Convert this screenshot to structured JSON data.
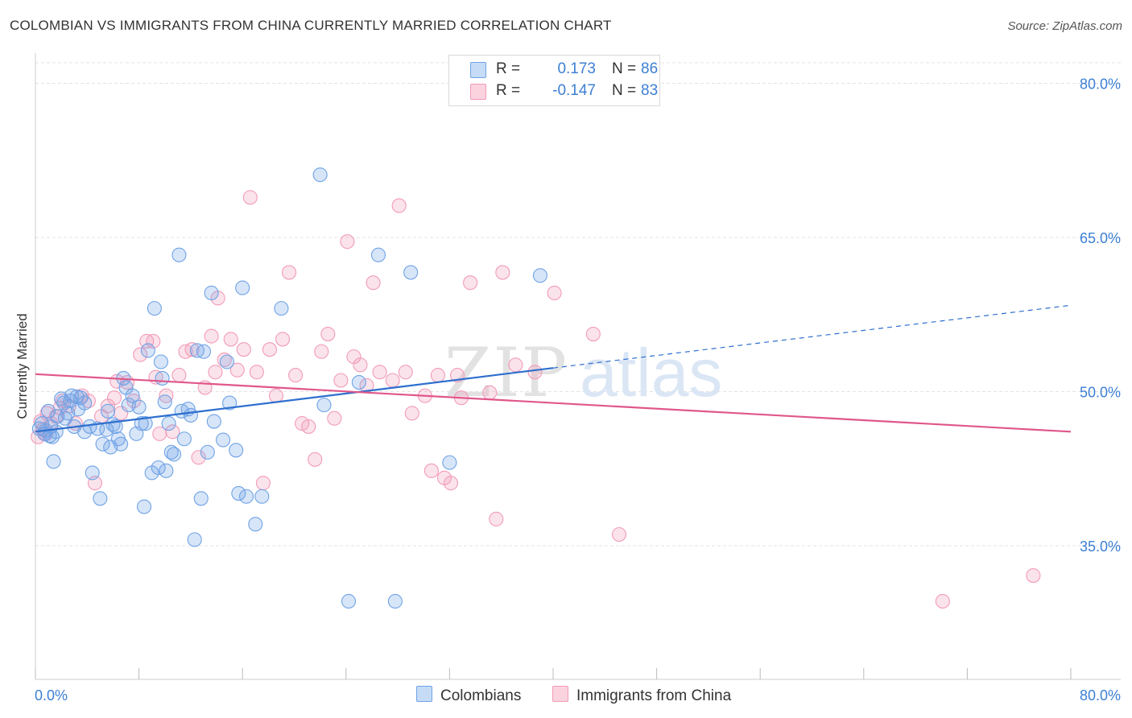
{
  "title": "COLOMBIAN VS IMMIGRANTS FROM CHINA CURRENTLY MARRIED CORRELATION CHART",
  "source": "Source: ZipAtlas.com",
  "watermark": {
    "zip": "ZIP",
    "atlas": "atlas"
  },
  "legend_top": {
    "rows": [
      {
        "r_label": "R =",
        "r_value": "0.173",
        "n_label": "N =",
        "n_value": "86"
      },
      {
        "r_label": "R =",
        "r_value": "-0.147",
        "n_label": "N =",
        "n_value": "83"
      }
    ]
  },
  "legend_bottom": {
    "items": [
      "Colombians",
      "Immigrants from China"
    ]
  },
  "chart_data": {
    "type": "scatter",
    "title": "COLOMBIAN VS IMMIGRANTS FROM CHINA CURRENTLY MARRIED CORRELATION CHART",
    "xlabel": "",
    "ylabel": "Currently Married",
    "xlim": [
      0,
      80
    ],
    "ylim": [
      22,
      82
    ],
    "x_tick_labels": [
      "0.0%",
      "80.0%"
    ],
    "y_ticks": [
      35,
      50,
      65,
      80
    ],
    "y_tick_labels": [
      "35.0%",
      "50.0%",
      "65.0%",
      "80.0%"
    ],
    "grid": true,
    "legend_position": "top-center",
    "colors": {
      "colombians": "#6fa3e6",
      "china": "#f29bb8",
      "line_blue": "#2d6fce",
      "line_pink": "#e0578a",
      "text_blue": "#3d7fd3"
    },
    "series": [
      {
        "name": "Colombians",
        "trend": {
          "x": [
            0,
            40
          ],
          "y": [
            46.1,
            52.3
          ],
          "dashed_to": [
            80,
            58.4
          ]
        },
        "points": [
          [
            0.3,
            46.4
          ],
          [
            0.5,
            46.9
          ],
          [
            0.7,
            45.9
          ],
          [
            1.0,
            48.1
          ],
          [
            1.2,
            46.6
          ],
          [
            1.3,
            45.6
          ],
          [
            1.4,
            43.2
          ],
          [
            1.6,
            46.1
          ],
          [
            1.7,
            47.6
          ],
          [
            2.0,
            49.3
          ],
          [
            2.2,
            48.9
          ],
          [
            2.5,
            47.9
          ],
          [
            2.7,
            49.1
          ],
          [
            3.0,
            46.6
          ],
          [
            3.2,
            49.5
          ],
          [
            3.5,
            49.4
          ],
          [
            3.8,
            48.9
          ],
          [
            3.8,
            46.1
          ],
          [
            4.2,
            46.6
          ],
          [
            4.4,
            42.1
          ],
          [
            4.8,
            46.4
          ],
          [
            5.0,
            39.6
          ],
          [
            5.2,
            44.9
          ],
          [
            5.5,
            46.3
          ],
          [
            5.6,
            48.1
          ],
          [
            5.8,
            44.6
          ],
          [
            6.2,
            46.6
          ],
          [
            6.4,
            45.4
          ],
          [
            6.6,
            44.9
          ],
          [
            6.8,
            51.3
          ],
          [
            7.0,
            50.4
          ],
          [
            7.2,
            48.7
          ],
          [
            7.5,
            49.6
          ],
          [
            7.8,
            45.9
          ],
          [
            8.0,
            48.5
          ],
          [
            8.2,
            46.9
          ],
          [
            8.4,
            38.8
          ],
          [
            8.7,
            54.0
          ],
          [
            9.0,
            42.1
          ],
          [
            9.2,
            58.1
          ],
          [
            9.5,
            42.6
          ],
          [
            9.7,
            52.9
          ],
          [
            9.8,
            51.3
          ],
          [
            10.1,
            42.3
          ],
          [
            10.3,
            46.9
          ],
          [
            10.5,
            44.1
          ],
          [
            10.7,
            43.9
          ],
          [
            11.1,
            63.3
          ],
          [
            11.3,
            48.1
          ],
          [
            11.5,
            45.4
          ],
          [
            11.8,
            48.3
          ],
          [
            12.3,
            35.6
          ],
          [
            12.5,
            54.0
          ],
          [
            12.8,
            39.6
          ],
          [
            13.0,
            53.9
          ],
          [
            13.3,
            44.1
          ],
          [
            13.6,
            59.6
          ],
          [
            13.8,
            47.1
          ],
          [
            14.5,
            45.3
          ],
          [
            14.8,
            52.9
          ],
          [
            15.0,
            48.9
          ],
          [
            15.5,
            44.3
          ],
          [
            15.7,
            40.1
          ],
          [
            16.0,
            60.1
          ],
          [
            16.3,
            39.8
          ],
          [
            17.0,
            37.1
          ],
          [
            17.5,
            39.8
          ],
          [
            19.0,
            58.1
          ],
          [
            22.0,
            71.1
          ],
          [
            22.3,
            48.7
          ],
          [
            24.2,
            29.6
          ],
          [
            25.0,
            50.9
          ],
          [
            26.5,
            63.3
          ],
          [
            27.8,
            29.6
          ],
          [
            29.0,
            61.6
          ],
          [
            32.0,
            43.1
          ],
          [
            39.0,
            61.3
          ],
          [
            2.8,
            49.6
          ],
          [
            6.0,
            46.8
          ],
          [
            12.0,
            47.7
          ],
          [
            8.5,
            46.9
          ],
          [
            3.3,
            48.3
          ],
          [
            1.1,
            45.7
          ],
          [
            0.8,
            46.2
          ],
          [
            2.3,
            47.4
          ],
          [
            10.0,
            49.0
          ]
        ]
      },
      {
        "name": "Immigrants from China",
        "trend": {
          "x": [
            0,
            80
          ],
          "y": [
            51.7,
            46.1
          ]
        },
        "points": [
          [
            0.2,
            45.6
          ],
          [
            0.4,
            47.1
          ],
          [
            0.6,
            46.3
          ],
          [
            0.9,
            47.9
          ],
          [
            1.2,
            46.9
          ],
          [
            1.6,
            47.6
          ],
          [
            2.1,
            49.1
          ],
          [
            2.6,
            48.6
          ],
          [
            3.1,
            46.9
          ],
          [
            3.6,
            49.6
          ],
          [
            4.1,
            49.1
          ],
          [
            4.6,
            41.1
          ],
          [
            5.1,
            47.6
          ],
          [
            5.6,
            48.6
          ],
          [
            6.1,
            49.4
          ],
          [
            6.3,
            51.0
          ],
          [
            6.6,
            47.9
          ],
          [
            7.1,
            50.9
          ],
          [
            7.6,
            49.1
          ],
          [
            8.1,
            53.6
          ],
          [
            8.6,
            54.9
          ],
          [
            9.1,
            54.9
          ],
          [
            9.6,
            45.9
          ],
          [
            10.1,
            49.6
          ],
          [
            10.6,
            46.1
          ],
          [
            11.1,
            51.6
          ],
          [
            11.6,
            53.9
          ],
          [
            12.1,
            54.1
          ],
          [
            12.6,
            43.6
          ],
          [
            13.1,
            50.4
          ],
          [
            13.6,
            55.4
          ],
          [
            14.1,
            59.1
          ],
          [
            14.6,
            53.1
          ],
          [
            15.1,
            55.1
          ],
          [
            15.6,
            52.1
          ],
          [
            16.1,
            54.1
          ],
          [
            16.6,
            68.9
          ],
          [
            17.1,
            51.9
          ],
          [
            17.6,
            41.1
          ],
          [
            18.1,
            54.1
          ],
          [
            18.6,
            49.6
          ],
          [
            19.1,
            55.1
          ],
          [
            19.6,
            61.6
          ],
          [
            20.1,
            51.6
          ],
          [
            20.6,
            46.9
          ],
          [
            21.1,
            46.6
          ],
          [
            21.6,
            43.4
          ],
          [
            22.1,
            53.9
          ],
          [
            22.6,
            55.6
          ],
          [
            23.1,
            47.4
          ],
          [
            23.6,
            51.1
          ],
          [
            24.1,
            64.6
          ],
          [
            25.1,
            52.6
          ],
          [
            25.6,
            50.6
          ],
          [
            26.1,
            60.6
          ],
          [
            26.6,
            51.9
          ],
          [
            27.6,
            51.1
          ],
          [
            28.1,
            68.1
          ],
          [
            28.6,
            51.9
          ],
          [
            29.1,
            47.9
          ],
          [
            30.1,
            49.6
          ],
          [
            30.6,
            42.3
          ],
          [
            31.1,
            51.6
          ],
          [
            31.6,
            41.6
          ],
          [
            32.1,
            41.1
          ],
          [
            32.6,
            51.6
          ],
          [
            33.6,
            60.6
          ],
          [
            35.1,
            49.9
          ],
          [
            35.6,
            37.6
          ],
          [
            36.1,
            61.6
          ],
          [
            37.1,
            52.6
          ],
          [
            38.6,
            51.9
          ],
          [
            40.1,
            59.6
          ],
          [
            43.1,
            55.6
          ],
          [
            45.1,
            36.1
          ],
          [
            70.1,
            29.6
          ],
          [
            77.1,
            32.1
          ],
          [
            0.8,
            45.9
          ],
          [
            1.9,
            48.4
          ],
          [
            9.3,
            51.4
          ],
          [
            24.6,
            53.4
          ],
          [
            32.9,
            49.4
          ],
          [
            13.9,
            51.9
          ]
        ]
      }
    ]
  }
}
